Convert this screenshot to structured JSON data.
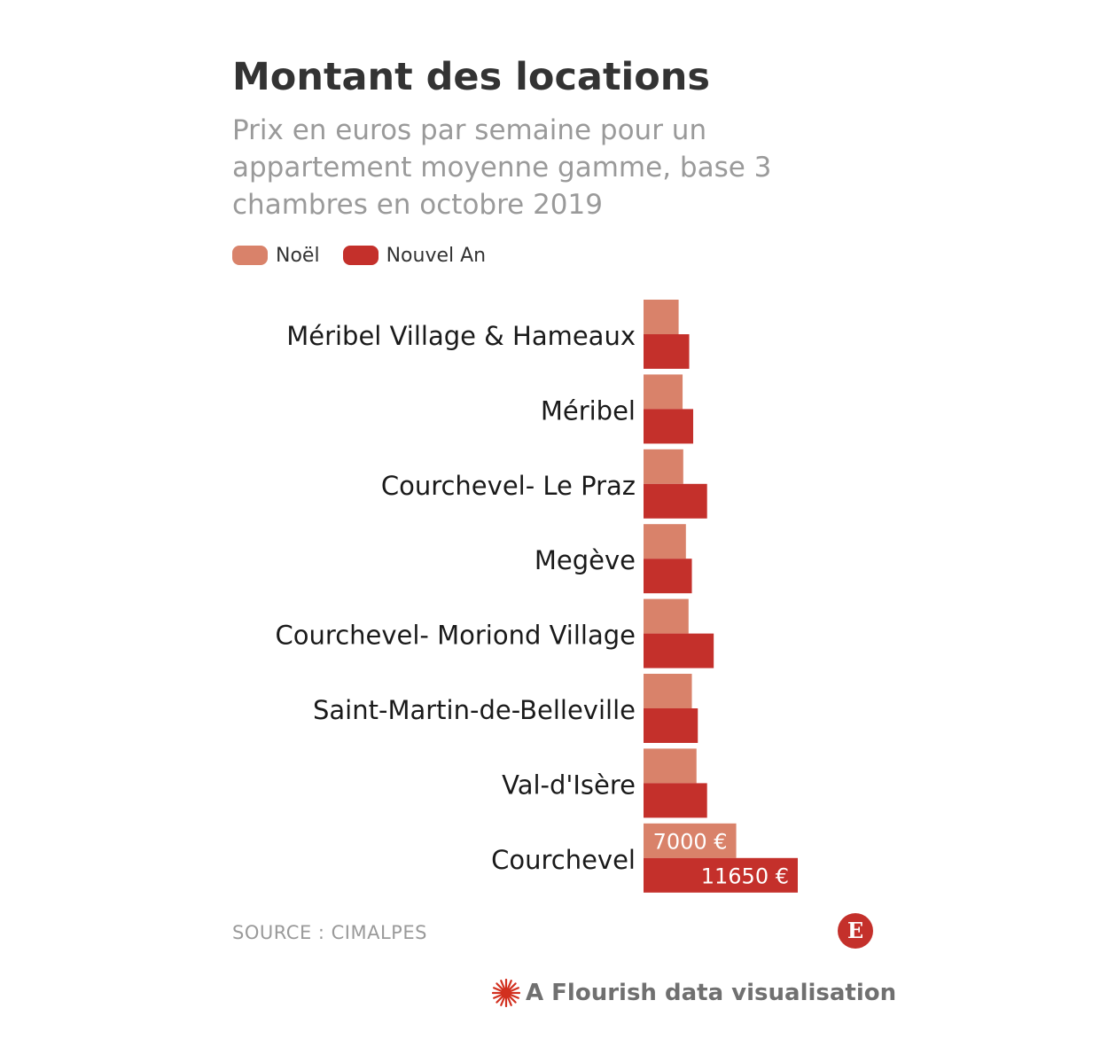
{
  "header": {
    "title": "Montant des locations",
    "subtitle": "Prix en euros par semaine pour un appartement moyenne gamme, base 3 chambres en octobre 2019"
  },
  "legend": {
    "items": [
      {
        "label": "Noël",
        "color": "#d9826a"
      },
      {
        "label": "Nouvel An",
        "color": "#c4302b"
      }
    ]
  },
  "chart_data": {
    "type": "bar",
    "orientation": "horizontal",
    "title": "Montant des locations",
    "subtitle": "Prix en euros par semaine pour un appartement moyenne gamme, base 3 chambres en octobre 2019",
    "categories": [
      "Méribel Village & Hameaux",
      "Méribel",
      "Courchevel- Le Praz",
      "Megève",
      "Courchevel- Moriond Village",
      "Saint-Martin-de-Belleville",
      "Val-d'Isère",
      "Courchevel"
    ],
    "series": [
      {
        "name": "Noël",
        "color": "#d9826a",
        "values": [
          2650,
          2950,
          3000,
          3200,
          3400,
          3650,
          4000,
          7000
        ],
        "data_labels": [
          "",
          "",
          "",
          "",
          "",
          "",
          "",
          "7000 €"
        ]
      },
      {
        "name": "Nouvel An",
        "color": "#c4302b",
        "values": [
          3450,
          3750,
          4800,
          3650,
          5300,
          4100,
          4800,
          11650
        ],
        "data_labels": [
          "",
          "",
          "",
          "",
          "",
          "",
          "",
          "11650 €"
        ]
      }
    ],
    "xlim": [
      0,
      11650
    ],
    "grid": false,
    "legend_position": "top-left"
  },
  "footer": {
    "source": "SOURCE : CIMALPES",
    "logo_letter": "E",
    "credit": "A Flourish data visualisation"
  }
}
